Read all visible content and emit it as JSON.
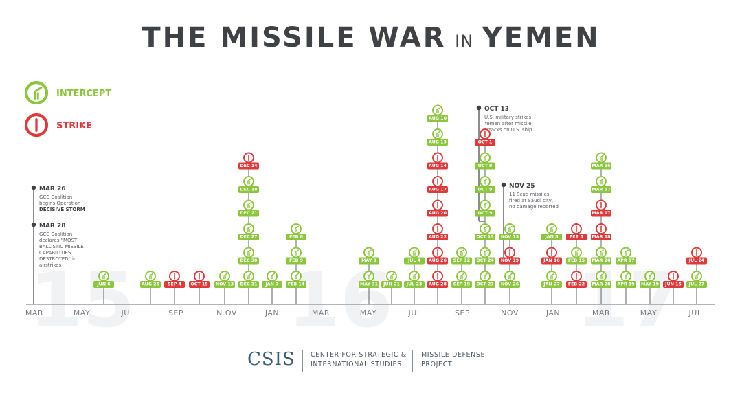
{
  "title": {
    "part1": "THE MISSILE WAR",
    "part2": "IN",
    "part3": "YEMEN"
  },
  "legend": {
    "intercept": "INTERCEPT",
    "strike": "STRIKE"
  },
  "colors": {
    "intercept": "#8cc63f",
    "strike": "#de3a3c",
    "text": "#3f4144",
    "axis": "#9a9da1",
    "watermark": "#f1f2f3",
    "stem": "#6d7073"
  },
  "chart_data": {
    "type": "timeline",
    "title": "THE MISSILE WAR IN YEMEN",
    "x_axis_labels": [
      "MAR",
      "MAY",
      "JUL",
      "SEP",
      "N OV",
      "JAN",
      "MAR",
      "MAY",
      "JUL",
      "SEP",
      "NOV",
      "JAN",
      "MAR",
      "MAY",
      "JUL"
    ],
    "watermark_years": [
      "15",
      "16",
      "17"
    ],
    "legend": [
      "INTERCEPT",
      "STRIKE"
    ],
    "annotations": [
      {
        "date": "MAR 26",
        "lines": [
          "GCC Coalition",
          "begins Operation"
        ],
        "bold_lines": [
          "DECISIVE STORM"
        ]
      },
      {
        "date": "MAR 28",
        "lines": [
          "GCC Coalition",
          "declares \"MOST",
          "BALLISTIC MISSILE",
          "CAPABILITIES",
          "DESTROYED\" in",
          "airstrikes"
        ]
      },
      {
        "date": "OCT 13",
        "lines": [
          "U.S. military strikes",
          "Yemen after missile",
          "attacks on U.S. ship"
        ]
      },
      {
        "date": "NOV 25",
        "lines": [
          "11 Scud missiles",
          "fired at Saudi city,",
          "no damage reported"
        ]
      }
    ],
    "events": [
      {
        "stack": [
          {
            "label": "JUN 6",
            "type": "intercept"
          }
        ]
      },
      {
        "stack": [
          {
            "label": "AUG 26",
            "type": "intercept"
          }
        ]
      },
      {
        "stack": [
          {
            "label": "SEP 4",
            "type": "strike"
          }
        ]
      },
      {
        "stack": [
          {
            "label": "OCT 15",
            "type": "strike"
          }
        ]
      },
      {
        "stack": [
          {
            "label": "NOV 13",
            "type": "intercept"
          }
        ]
      },
      {
        "stack": [
          {
            "label": "DEC 31",
            "type": "intercept"
          },
          {
            "label": "DEC 30",
            "type": "intercept"
          },
          {
            "label": "DEC 27",
            "type": "intercept"
          },
          {
            "label": "DEC 21",
            "type": "intercept"
          },
          {
            "label": "DEC 18",
            "type": "intercept"
          },
          {
            "label": "DEC 14",
            "type": "strike"
          }
        ]
      },
      {
        "stack": [
          {
            "label": "JAN 7",
            "type": "intercept"
          }
        ]
      },
      {
        "stack": [
          {
            "label": "FEB 14",
            "type": "intercept"
          },
          {
            "label": "FEB 9",
            "type": "intercept"
          },
          {
            "label": "FEB 8",
            "type": "intercept"
          }
        ]
      },
      {
        "stack": [
          {
            "label": "MAY 31",
            "type": "intercept"
          },
          {
            "label": "MAY 9",
            "type": "intercept"
          }
        ]
      },
      {
        "stack": [
          {
            "label": "JUN 21",
            "type": "intercept"
          }
        ]
      },
      {
        "stack": [
          {
            "label": "JUL 23",
            "type": "intercept"
          },
          {
            "label": "JUL 4",
            "type": "intercept"
          }
        ]
      },
      {
        "stack": [
          {
            "label": "AUG 28",
            "type": "strike"
          },
          {
            "label": "AUG 26",
            "type": "strike"
          },
          {
            "label": "AUG 22",
            "type": "strike"
          },
          {
            "label": "AUG 20",
            "type": "strike"
          },
          {
            "label": "AUG 17",
            "type": "strike"
          },
          {
            "label": "AUG 14",
            "type": "strike"
          },
          {
            "label": "AUG 13",
            "type": "intercept"
          },
          {
            "label": "AUG 10",
            "type": "intercept"
          }
        ]
      },
      {
        "stack": [
          {
            "label": "SEP 19",
            "type": "intercept"
          },
          {
            "label": "SEP 12",
            "type": "intercept"
          }
        ]
      },
      {
        "stack": [
          {
            "label": "OCT 27",
            "type": "intercept"
          },
          {
            "label": "OCT 24",
            "type": "intercept"
          },
          {
            "label": "OCT 15",
            "type": "intercept"
          },
          {
            "label": "OCT 9",
            "type": "intercept"
          },
          {
            "label": "OCT 9",
            "type": "intercept"
          },
          {
            "label": "OCT 9",
            "type": "intercept"
          },
          {
            "label": "OCT 1",
            "type": "strike"
          }
        ]
      },
      {
        "stack": [
          {
            "label": "NOV 26",
            "type": "intercept"
          },
          {
            "label": "NOV 19",
            "type": "strike"
          },
          {
            "label": "NOV 13",
            "type": "intercept"
          }
        ]
      },
      {
        "stack": [
          {
            "label": "JAN 27",
            "type": "intercept"
          },
          {
            "label": "JAN 16",
            "type": "strike"
          },
          {
            "label": "JAN 8",
            "type": "intercept"
          }
        ]
      },
      {
        "stack": [
          {
            "label": "FEB 22",
            "type": "strike"
          },
          {
            "label": "FEB 15",
            "type": "intercept"
          },
          {
            "label": "FEB 5",
            "type": "strike"
          }
        ]
      },
      {
        "stack": [
          {
            "label": "MAR 28",
            "type": "intercept"
          },
          {
            "label": "MAR 20",
            "type": "intercept"
          },
          {
            "label": "MAR 18",
            "type": "strike"
          },
          {
            "label": "MAR 17",
            "type": "strike"
          },
          {
            "label": "MAR 17",
            "type": "intercept"
          },
          {
            "label": "MAR 16",
            "type": "intercept"
          }
        ]
      },
      {
        "stack": [
          {
            "label": "APR 19",
            "type": "intercept"
          },
          {
            "label": "APR 17",
            "type": "intercept"
          }
        ]
      },
      {
        "stack": [
          {
            "label": "MAY 19",
            "type": "intercept"
          }
        ]
      },
      {
        "stack": [
          {
            "label": "JUN 15",
            "type": "strike"
          }
        ]
      },
      {
        "stack": [
          {
            "label": "JUL 27",
            "type": "intercept"
          },
          {
            "label": "JUL 24",
            "type": "strike"
          }
        ]
      }
    ]
  },
  "footer": {
    "logo": "CSIS",
    "center_line1": "CENTER FOR STRATEGIC &",
    "center_line2": "INTERNATIONAL STUDIES",
    "project_line1": "MISSILE DEFENSE",
    "project_line2": "PROJECT"
  }
}
